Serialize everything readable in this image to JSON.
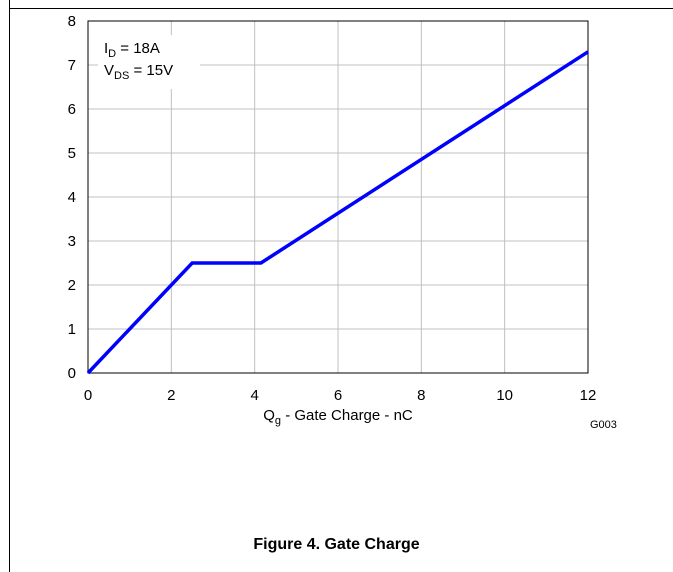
{
  "chart_data": {
    "type": "line",
    "xlabel_main": "Q",
    "xlabel_sub": "g",
    "xlabel_rest": " - Gate Charge - nC",
    "ylabel": "",
    "xlim": [
      0,
      12
    ],
    "ylim": [
      0,
      8
    ],
    "xticks": [
      0,
      2,
      4,
      6,
      8,
      10,
      12
    ],
    "yticks": [
      0,
      1,
      2,
      3,
      4,
      5,
      6,
      7,
      8
    ],
    "grid": true,
    "series": [
      {
        "color": "#0000ff",
        "x": [
          0,
          2.5,
          4.15,
          12
        ],
        "y": [
          0,
          2.5,
          2.5,
          7.3
        ]
      }
    ],
    "annotations": [
      {
        "main": "I",
        "sub": "D",
        "rest": " = 18A"
      },
      {
        "main": "V",
        "sub": "DS",
        "rest": " = 15V"
      }
    ],
    "code": "G003"
  },
  "caption": "Figure 4. Gate Charge"
}
